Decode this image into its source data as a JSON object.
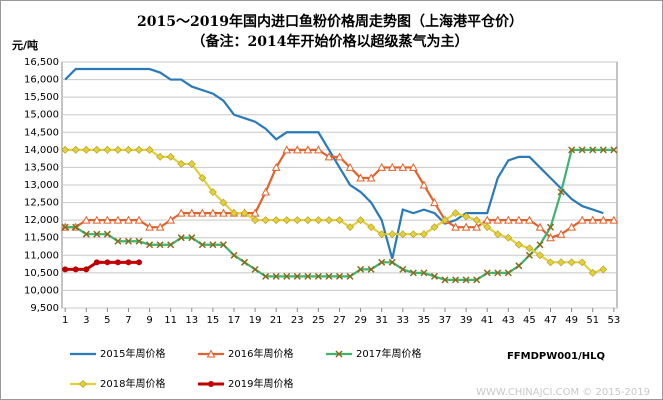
{
  "chart_data": {
    "type": "line",
    "title": "2015～2019年国内进口鱼粉价格周走势图（上海港平仓价）",
    "subtitle": "（备注：2014年开始价格以超级蒸气为主）",
    "y_label": "元/吨",
    "source_code": "FFMDPW001/HLQ",
    "watermark": "WWW.CHINAJCI.COM © 2015-2019",
    "x": [
      1,
      2,
      3,
      4,
      5,
      6,
      7,
      8,
      9,
      10,
      11,
      12,
      13,
      14,
      15,
      16,
      17,
      18,
      19,
      20,
      21,
      22,
      23,
      24,
      25,
      26,
      27,
      28,
      29,
      30,
      31,
      32,
      33,
      34,
      35,
      36,
      37,
      38,
      39,
      40,
      41,
      42,
      43,
      44,
      45,
      46,
      47,
      48,
      49,
      50,
      51,
      52,
      53
    ],
    "xlim": [
      0.7,
      53.3
    ],
    "xticks": [
      1,
      3,
      5,
      7,
      9,
      11,
      13,
      15,
      17,
      19,
      21,
      23,
      25,
      27,
      29,
      31,
      33,
      35,
      37,
      39,
      41,
      43,
      45,
      47,
      49,
      51,
      53
    ],
    "ylim": [
      9500,
      16500
    ],
    "yticks": [
      {
        "value": 9500,
        "label": "9,500"
      },
      {
        "value": 10000,
        "label": "10,000"
      },
      {
        "value": 10500,
        "label": "10,500"
      },
      {
        "value": 11000,
        "label": "11,000"
      },
      {
        "value": 11500,
        "label": "11,500"
      },
      {
        "value": 12000,
        "label": "12,000"
      },
      {
        "value": 12500,
        "label": "12,500"
      },
      {
        "value": 13000,
        "label": "13,000"
      },
      {
        "value": 13500,
        "label": "13,500"
      },
      {
        "value": 14000,
        "label": "14,000"
      },
      {
        "value": 14500,
        "label": "14,500"
      },
      {
        "value": 15000,
        "label": "15,000"
      },
      {
        "value": 15500,
        "label": "15,500"
      },
      {
        "value": 16000,
        "label": "16,000"
      },
      {
        "value": 16500,
        "label": "16,500"
      }
    ],
    "grid": true,
    "series": [
      {
        "name": "2015年周价格",
        "color": "#2a7ab9",
        "marker": "none",
        "values": [
          16000,
          16300,
          16300,
          16300,
          16300,
          16300,
          16300,
          16300,
          16300,
          16200,
          16000,
          16000,
          15800,
          15700,
          15600,
          15400,
          15000,
          14900,
          14800,
          14600,
          14300,
          14500,
          14500,
          14500,
          14500,
          14000,
          13500,
          13000,
          12800,
          12500,
          12000,
          10900,
          12300,
          12200,
          12300,
          12200,
          11900,
          12000,
          12200,
          12200,
          12200,
          13200,
          13700,
          13800,
          13800,
          13500,
          13200,
          12900,
          12600,
          12400,
          12300,
          12200,
          null
        ]
      },
      {
        "name": "2016年周价格",
        "color": "#e2622c",
        "marker": "triangle",
        "values": [
          11800,
          11800,
          12000,
          12000,
          12000,
          12000,
          12000,
          12000,
          11800,
          11800,
          12000,
          12200,
          12200,
          12200,
          12200,
          12200,
          12200,
          12200,
          12200,
          12800,
          13500,
          14000,
          14000,
          14000,
          14000,
          13800,
          13800,
          13500,
          13200,
          13200,
          13500,
          13500,
          13500,
          13500,
          13000,
          12500,
          12000,
          11800,
          11800,
          11800,
          12000,
          12000,
          12000,
          12000,
          12000,
          11800,
          11500,
          11600,
          11800,
          12000,
          12000,
          12000,
          12000
        ]
      },
      {
        "name": "2017年周价格",
        "color": "#3cb46e",
        "marker": "x",
        "values": [
          11800,
          11800,
          11600,
          11600,
          11600,
          11400,
          11400,
          11400,
          11300,
          11300,
          11300,
          11500,
          11500,
          11300,
          11300,
          11300,
          11000,
          10800,
          10600,
          10400,
          10400,
          10400,
          10400,
          10400,
          10400,
          10400,
          10400,
          10400,
          10600,
          10600,
          10800,
          10800,
          10600,
          10500,
          10500,
          10400,
          10300,
          10300,
          10300,
          10300,
          10500,
          10500,
          10500,
          10700,
          11000,
          11300,
          11800,
          12800,
          14000,
          14000,
          14000,
          14000,
          14000
        ]
      },
      {
        "name": "2018年周价格",
        "color": "#e3cf3c",
        "marker": "diamond",
        "values": [
          14000,
          14000,
          14000,
          14000,
          14000,
          14000,
          14000,
          14000,
          14000,
          13800,
          13800,
          13600,
          13600,
          13200,
          12800,
          12500,
          12200,
          12200,
          12000,
          12000,
          12000,
          12000,
          12000,
          12000,
          12000,
          12000,
          12000,
          11800,
          12000,
          11800,
          11600,
          11600,
          11600,
          11600,
          11600,
          11800,
          12000,
          12200,
          12100,
          12000,
          11800,
          11600,
          11500,
          11300,
          11200,
          11000,
          10800,
          10800,
          10800,
          10800,
          10500,
          10600,
          null
        ]
      },
      {
        "name": "2019年周价格",
        "color": "#c00000",
        "marker": "circle",
        "values": [
          10600,
          10600,
          10600,
          10800,
          10800,
          10800,
          10800,
          10800,
          null,
          null,
          null,
          null,
          null,
          null,
          null,
          null,
          null,
          null,
          null,
          null,
          null,
          null,
          null,
          null,
          null,
          null,
          null,
          null,
          null,
          null,
          null,
          null,
          null,
          null,
          null,
          null,
          null,
          null,
          null,
          null,
          null,
          null,
          null,
          null,
          null,
          null,
          null,
          null,
          null,
          null,
          null,
          null,
          null
        ]
      }
    ]
  }
}
